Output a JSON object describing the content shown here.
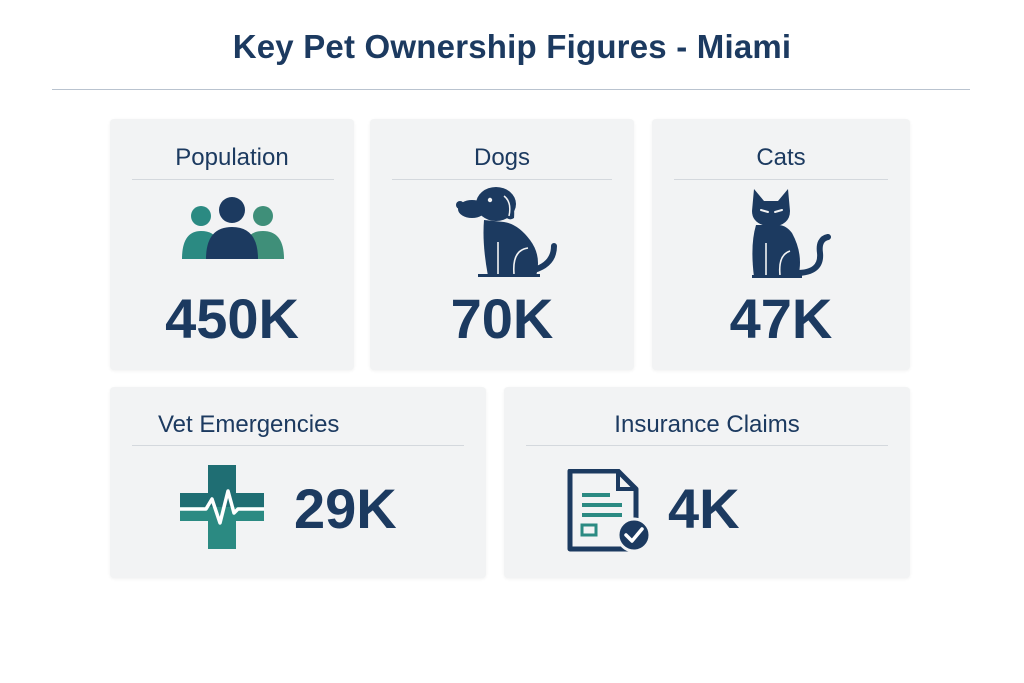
{
  "header": {
    "title": "Key Pet Ownership Figures - Miami"
  },
  "cards": [
    {
      "label": "Population",
      "value": "450K",
      "icon": "people-group-icon"
    },
    {
      "label": "Dogs",
      "value": "70K",
      "icon": "dog-icon"
    },
    {
      "label": "Cats",
      "value": "47K",
      "icon": "cat-icon"
    },
    {
      "label": "Vet Emergencies",
      "value": "29K",
      "icon": "medical-cross-heartbeat-icon"
    },
    {
      "label": "Insurance Claims",
      "value": "4K",
      "icon": "insurance-claim-document-icon"
    }
  ],
  "colors": {
    "navy": "#1c3a60",
    "teal": "#2b8a82",
    "green": "#3f8f79",
    "card_bg": "#f2f3f4"
  }
}
